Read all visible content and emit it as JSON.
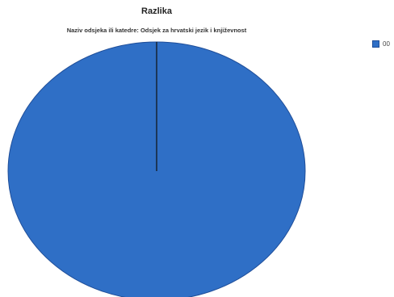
{
  "chart_data": {
    "type": "pie",
    "title": "Razlika",
    "subtitle": "Naziv odsjeka ili katedre: Odsjek za hrvatski jezik i književnost",
    "slices": [
      {
        "label": "00",
        "value": 100,
        "color": "#2f6fc6"
      }
    ],
    "legend_position": "top-right"
  }
}
